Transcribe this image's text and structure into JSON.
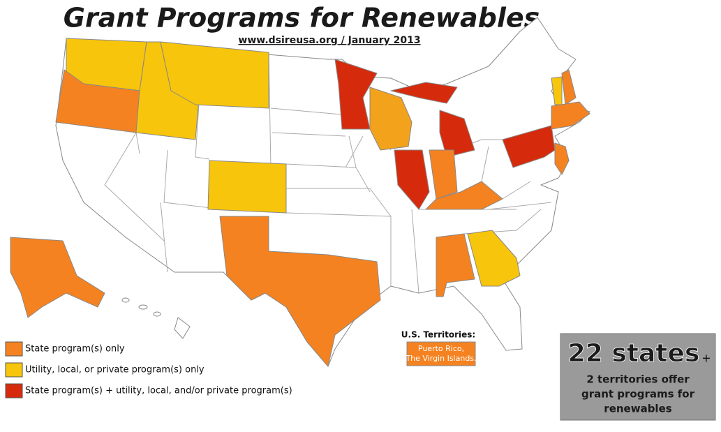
{
  "title": "Grant Programs for Renewables",
  "subtitle": "www.dsireusa.org / January 2013",
  "legend": [
    {
      "label": "State program(s) only",
      "color": "#f58220"
    },
    {
      "label": "Utility, local, or private program(s) only",
      "color": "#f7c50b"
    },
    {
      "label": "State program(s) + utility, local, and/or private program(s)",
      "color": "#d52b0c"
    }
  ],
  "territories": {
    "heading": "U.S. Territories:",
    "lines": [
      "Puerto Rico,",
      "The Virgin Islands."
    ]
  },
  "summary": {
    "headline": "22 states",
    "plus": "+",
    "lines": [
      "2 territories offer",
      "grant programs for",
      "renewables"
    ]
  }
}
